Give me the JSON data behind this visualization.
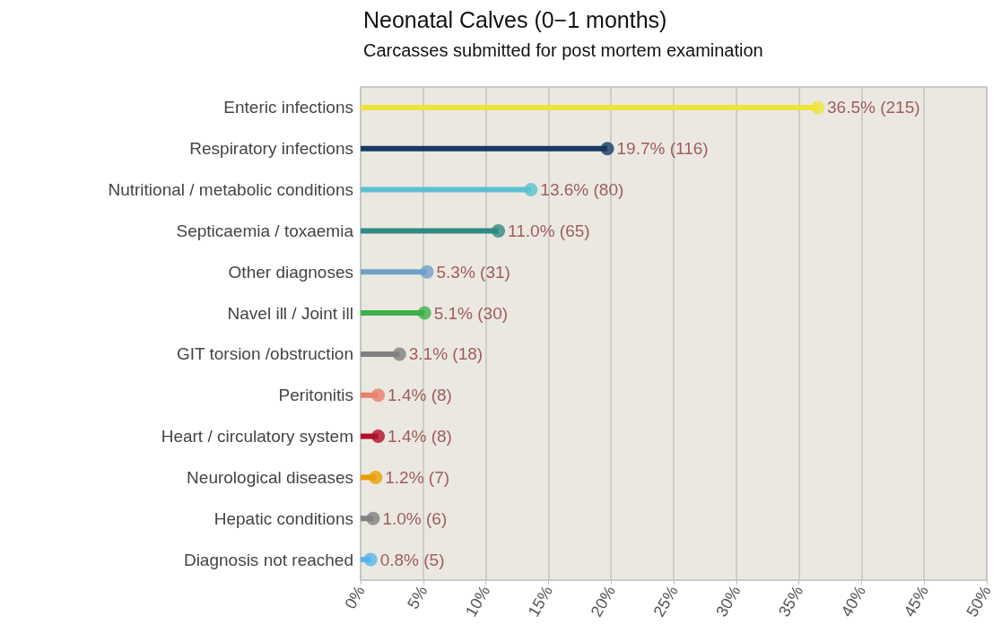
{
  "chart_data": {
    "type": "lollipop",
    "orientation": "horizontal",
    "title": "Neonatal Calves (0−1 months)",
    "subtitle": "Carcasses submitted for post mortem examination",
    "categories": [
      "Enteric infections",
      "Respiratory infections",
      "Nutritional / metabolic conditions",
      "Septicaemia / toxaemia",
      "Other diagnoses",
      "Navel ill / Joint ill",
      "GIT torsion /obstruction",
      "Peritonitis",
      "Heart / circulatory system",
      "Neurological diseases",
      "Hepatic conditions",
      "Diagnosis not reached"
    ],
    "values": [
      36.5,
      19.7,
      13.6,
      11.0,
      5.3,
      5.1,
      3.1,
      1.4,
      1.4,
      1.2,
      1.0,
      0.8
    ],
    "value_labels": [
      "36.5% (215)",
      "19.7% (116)",
      "13.6% (80)",
      "11.0% (65)",
      "5.3% (31)",
      "5.1% (30)",
      "3.1% (18)",
      "1.4% (8)",
      "1.4% (8)",
      "1.2% (7)",
      "1.0% (6)",
      "0.8% (5)"
    ],
    "colors": [
      "#ede33a",
      "#173a64",
      "#5bc0d0",
      "#2e8b80",
      "#6fa0c8",
      "#3cb04a",
      "#808080",
      "#e8806a",
      "#b0102a",
      "#e8a000",
      "#808080",
      "#56b4e9"
    ],
    "xlim": [
      0,
      50
    ],
    "xticks": [
      {
        "value": 0,
        "label": "0%"
      },
      {
        "value": 5,
        "label": "5%"
      },
      {
        "value": 10,
        "label": "10%"
      },
      {
        "value": 15,
        "label": "15%"
      },
      {
        "value": 20,
        "label": "20%"
      },
      {
        "value": 25,
        "label": "25%"
      },
      {
        "value": 30,
        "label": "30%"
      },
      {
        "value": 35,
        "label": "35%"
      },
      {
        "value": 40,
        "label": "40%"
      },
      {
        "value": 45,
        "label": "45%"
      },
      {
        "value": 50,
        "label": "50%"
      }
    ],
    "grid": "x"
  }
}
